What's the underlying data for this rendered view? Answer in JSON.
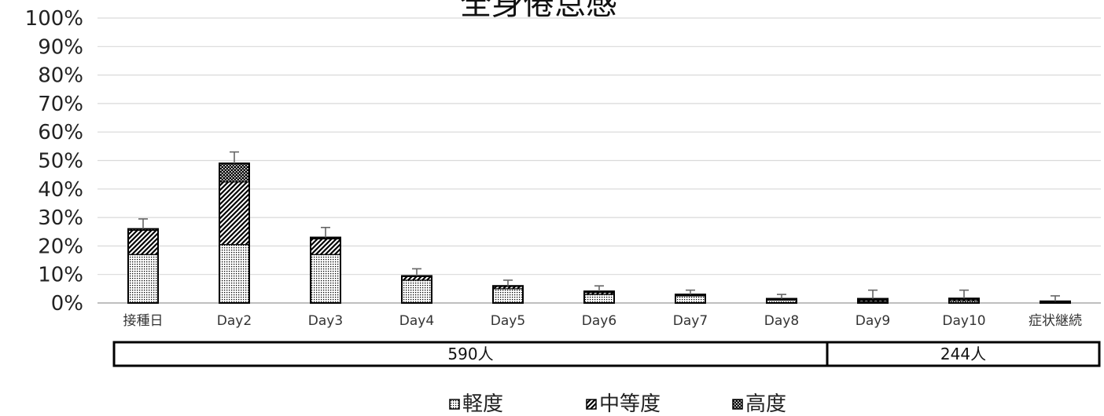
{
  "chart_data": {
    "type": "bar",
    "stacked": true,
    "title": "全身倦怠感",
    "categories": [
      "接種日",
      "Day2",
      "Day3",
      "Day4",
      "Day5",
      "Day6",
      "Day7",
      "Day8",
      "Day9",
      "Day10",
      "症状継続"
    ],
    "series": [
      {
        "name": "軽度",
        "pattern": "dots",
        "values": [
          17,
          20.5,
          17,
          8,
          5,
          3,
          2.5,
          1,
          0.5,
          0.8,
          0.3
        ]
      },
      {
        "name": "中等度",
        "pattern": "diagonal",
        "values": [
          8.5,
          22,
          5.5,
          1.3,
          0.8,
          0.7,
          0.3,
          0.3,
          0.5,
          0.5,
          0.2
        ]
      },
      {
        "name": "高度",
        "pattern": "checker",
        "values": [
          0.5,
          6.5,
          0.5,
          0.2,
          0.2,
          0.4,
          0.2,
          0.2,
          0.5,
          0.3,
          0.1
        ]
      }
    ],
    "error_bar_top": [
      29.5,
      53,
      26.5,
      12,
      8,
      6,
      4.5,
      3,
      4.5,
      4.5,
      2.5
    ],
    "yticks": [
      "0%",
      "10%",
      "20%",
      "30%",
      "40%",
      "50%",
      "60%",
      "70%",
      "80%",
      "90%",
      "100%"
    ],
    "ylim": [
      0,
      100
    ],
    "grid": true,
    "groups": [
      {
        "label": "590人",
        "from": 0,
        "to": 7
      },
      {
        "label": "244人",
        "from": 8,
        "to": 10
      }
    ],
    "legend": {
      "position": "bottom",
      "entries": [
        "軽度",
        "中等度",
        "高度"
      ]
    }
  }
}
